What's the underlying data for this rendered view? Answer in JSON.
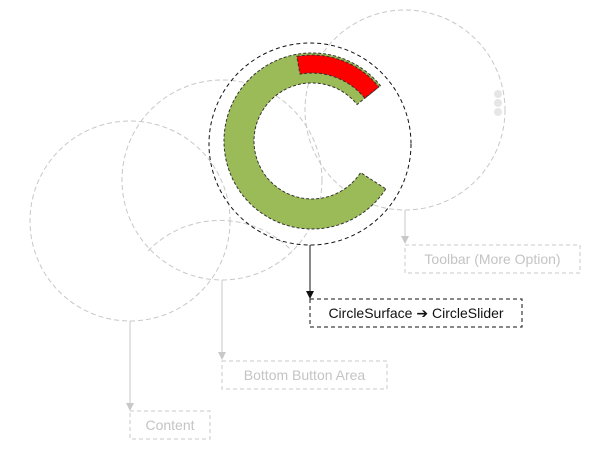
{
  "labels": {
    "toolbar": "Toolbar (More Option)",
    "main": "CircleSurface ➔ CircleSlider",
    "bottom_button_area": "Bottom Button Area",
    "content": "Content"
  },
  "slider": {
    "value_fraction": 0.8,
    "highlight_fraction": 0.17
  },
  "colors": {
    "faint": "#c8c8c8",
    "label_faint": "#c4c4c4",
    "main_line": "#111111",
    "slider_green": "#9bbb59",
    "slider_red": "#ff0000",
    "more_dots": "#e6e6e6"
  },
  "icons": {
    "more_option": "vertical-dots-icon"
  }
}
